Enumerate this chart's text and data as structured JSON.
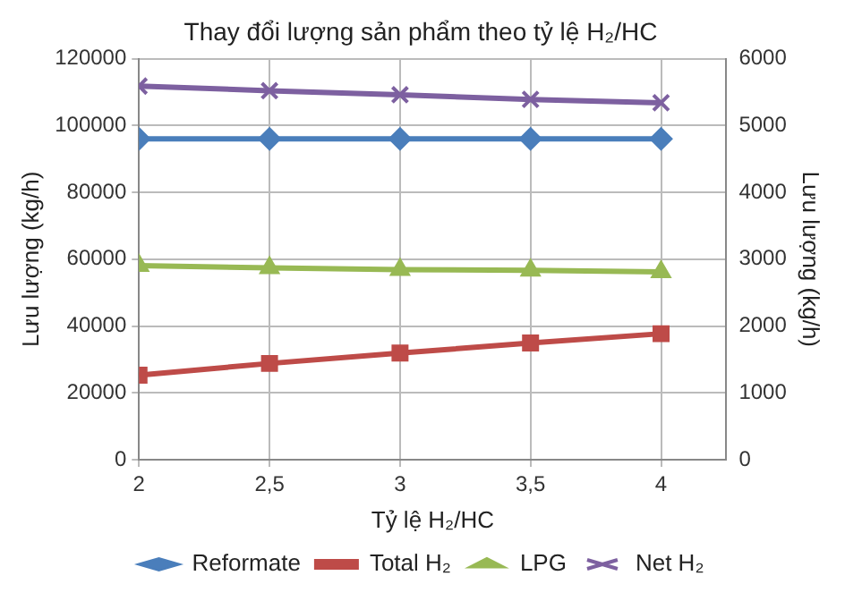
{
  "chart_data": {
    "type": "line",
    "title": "Thay đổi lượng sản phẩm theo tỷ lệ H₂/HC",
    "xlabel": "Tỷ lệ H₂/HC",
    "ylabel": "Lưu lượng (kg/h)",
    "y2label": "Lưu lượng (kg/h)",
    "x": [
      2,
      2.5,
      3,
      3.5,
      4
    ],
    "xlim": [
      2,
      4.25
    ],
    "xticks": [
      2,
      {
        "value": 2.5,
        "label": "2,5"
      },
      3,
      {
        "value": 3.5,
        "label": "3,5"
      },
      4
    ],
    "ylim": [
      0,
      120000
    ],
    "yticks": [
      0,
      20000,
      40000,
      60000,
      80000,
      100000,
      120000
    ],
    "y2lim": [
      0,
      6000
    ],
    "y2ticks": [
      0,
      1000,
      2000,
      3000,
      4000,
      5000,
      6000
    ],
    "grid": true,
    "legend": "bottom",
    "series": [
      {
        "name": "Reformate",
        "color": "#4a7ebb",
        "marker": "diamond",
        "values": [
          96000,
          96000,
          96000,
          96000,
          96000
        ]
      },
      {
        "name": "Total H₂",
        "color": "#be4b48",
        "marker": "square",
        "values": [
          25300,
          28800,
          31900,
          34900,
          37700
        ]
      },
      {
        "name": "LPG",
        "color": "#98b954",
        "marker": "triangle",
        "values": [
          58100,
          57400,
          56900,
          56700,
          56200
        ]
      },
      {
        "name": "Net H₂",
        "color": "#7d60a0",
        "marker": "cross",
        "axis": "y2",
        "values": [
          5590,
          5520,
          5460,
          5390,
          5340
        ]
      }
    ]
  }
}
